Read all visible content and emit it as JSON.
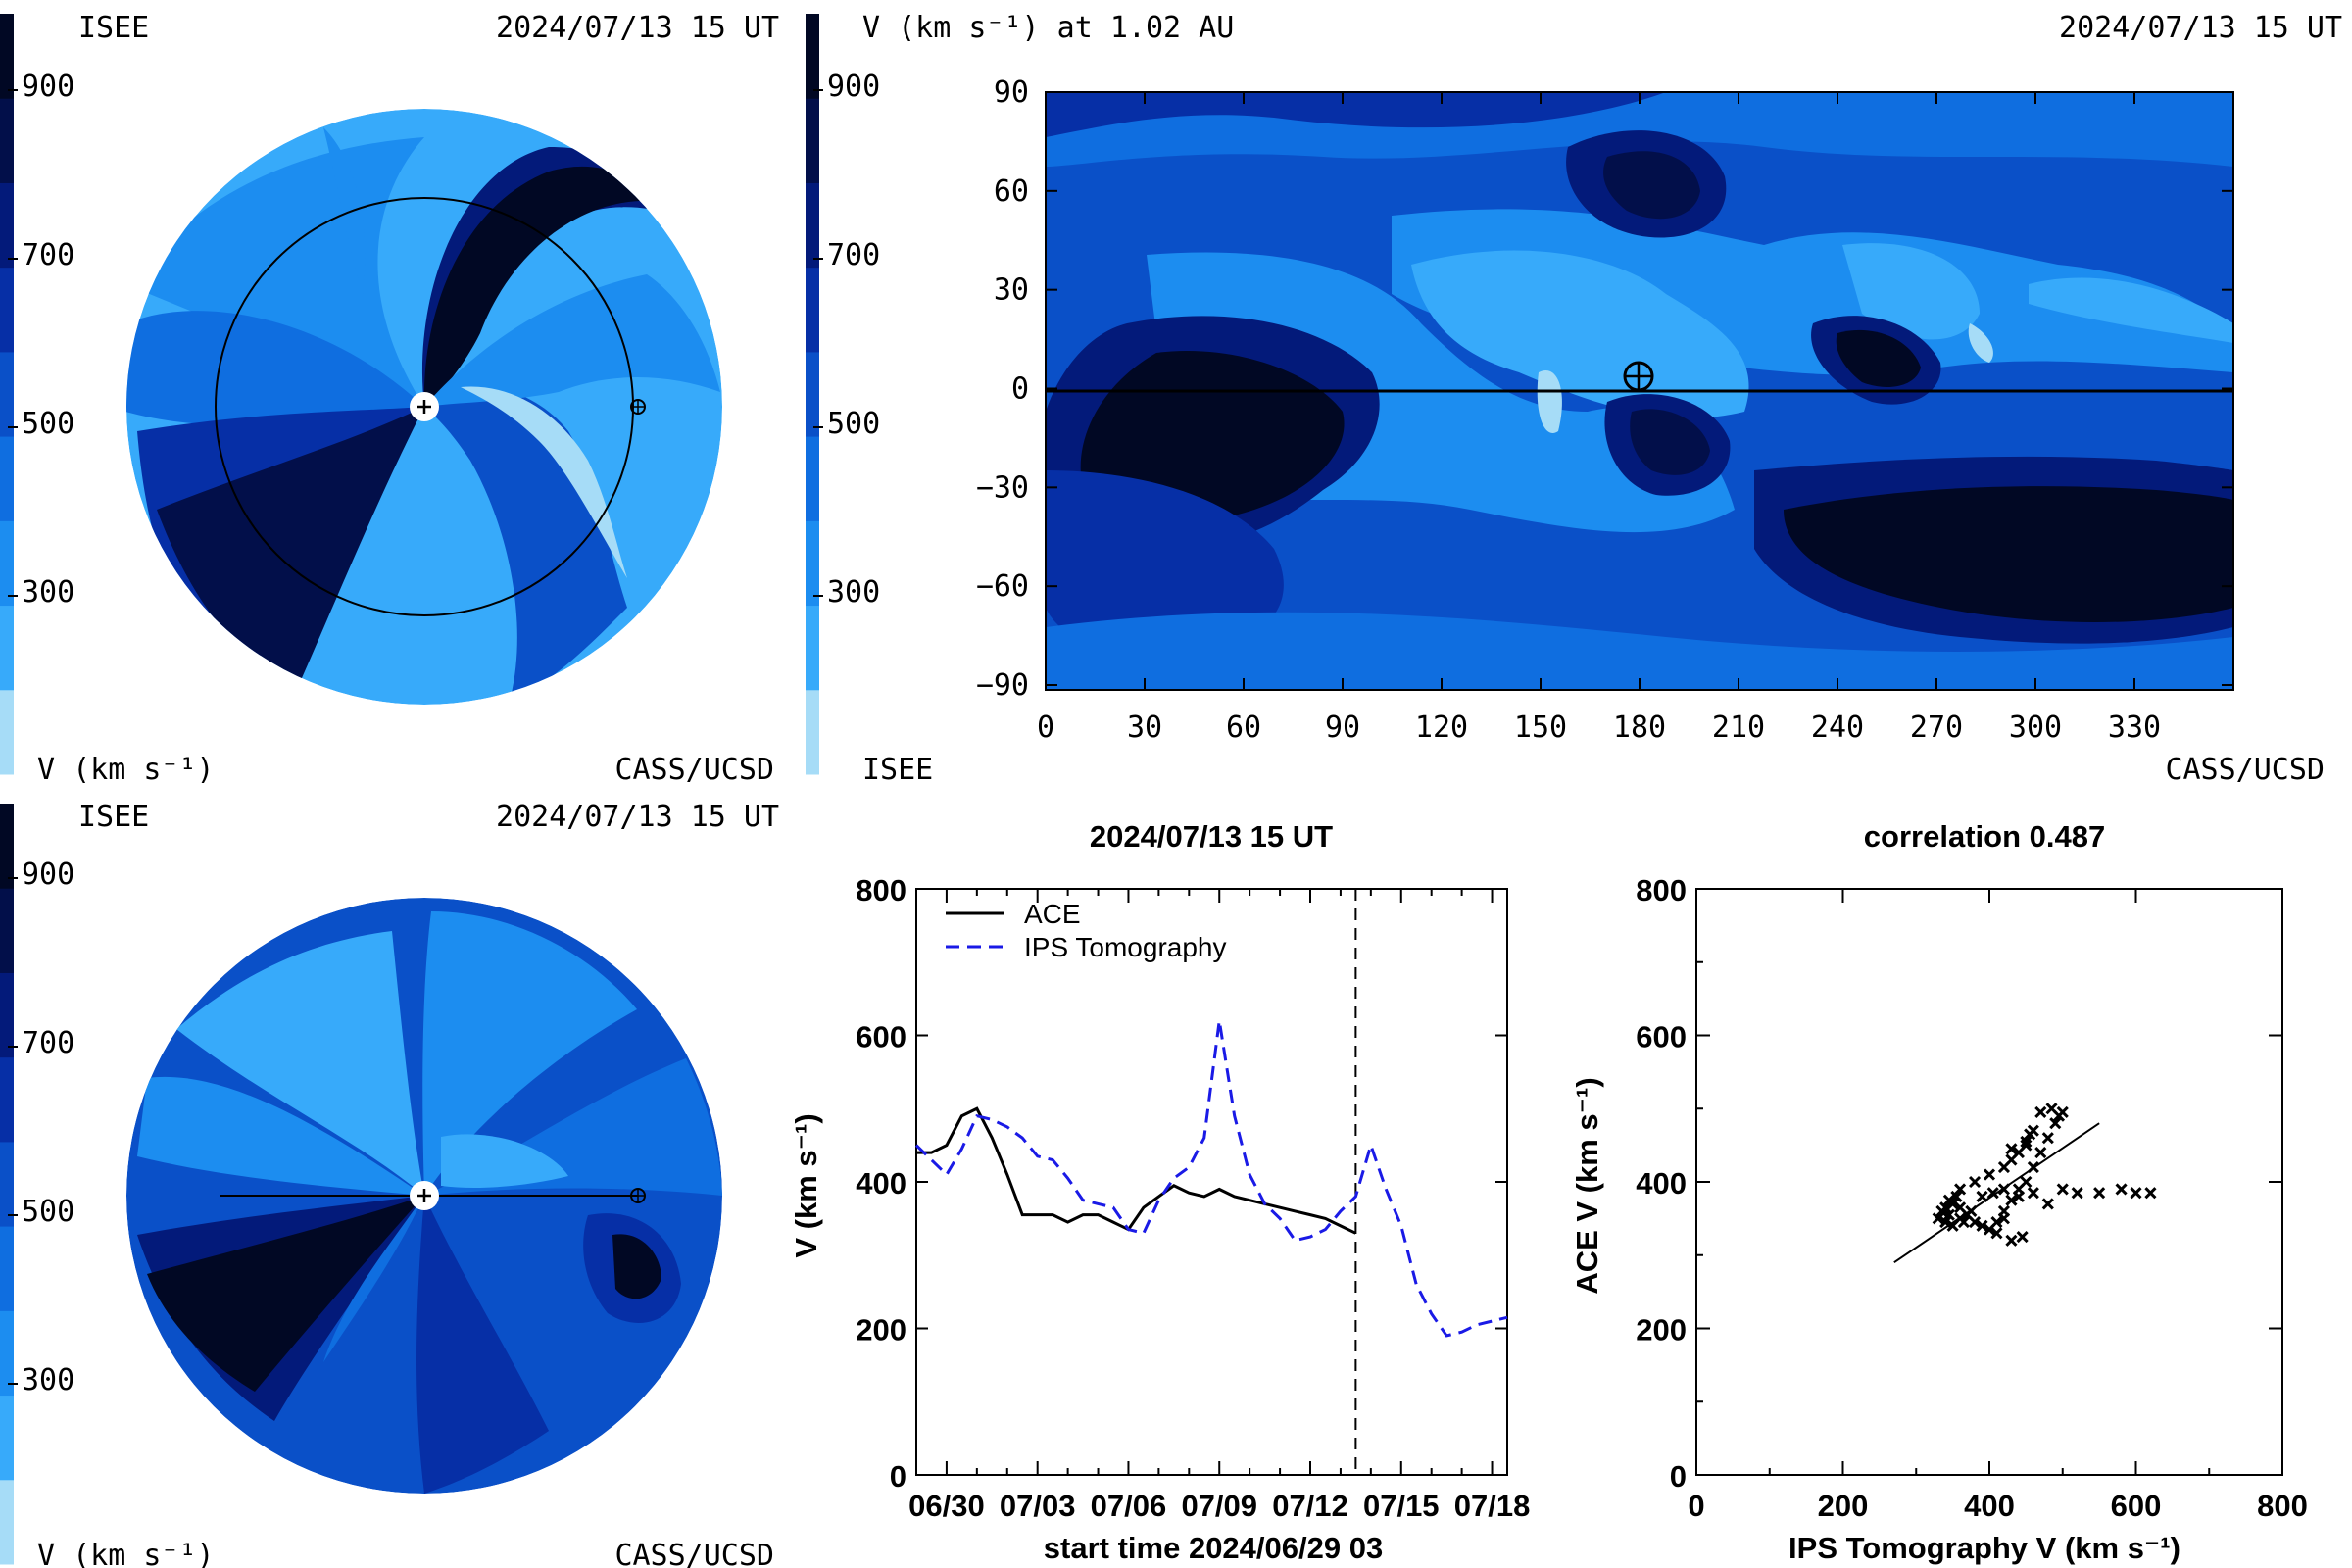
{
  "colors": {
    "scale": [
      "#a6dcf7",
      "#37aafa",
      "#1c8df0",
      "#0f6ee0",
      "#0a50c8",
      "#062fa6",
      "#031a7a",
      "#020f4a",
      "#010824"
    ],
    "ace": "#000000",
    "ips": "#1a1ae6"
  },
  "panel_tl": {
    "org": "ISEE",
    "timestamp": "2024/07/13 15 UT",
    "unit": "V (km s⁻¹)",
    "credit": "CASS/UCSD",
    "scale_ticks": [
      "900",
      "700",
      "500",
      "300"
    ]
  },
  "panel_tr": {
    "title": "V (km s⁻¹) at 1.02 AU",
    "timestamp": "2024/07/13 15 UT",
    "org": "ISEE",
    "credit": "CASS/UCSD",
    "scale_ticks": [
      "900",
      "700",
      "500",
      "300"
    ],
    "y_ticks": [
      "90",
      "60",
      "30",
      "0",
      "−30",
      "−60",
      "−90"
    ],
    "x_ticks": [
      "0",
      "30",
      "60",
      "90",
      "120",
      "150",
      "180",
      "210",
      "240",
      "270",
      "300",
      "330"
    ]
  },
  "panel_bl": {
    "org": "ISEE",
    "timestamp": "2024/07/13 15 UT",
    "unit": "V (km s⁻¹)",
    "credit": "CASS/UCSD",
    "scale_ticks": [
      "900",
      "700",
      "500",
      "300"
    ]
  },
  "chart_data": [
    {
      "type": "line",
      "title": "2024/07/13 15 UT",
      "xlabel": "start time 2024/06/29 03",
      "ylabel": "V (km s⁻¹)",
      "ylim": [
        0,
        800
      ],
      "x_tick_labels": [
        "06/30",
        "07/03",
        "07/06",
        "07/09",
        "07/12",
        "07/15",
        "07/18"
      ],
      "y_tick_labels": [
        "0",
        "200",
        "400",
        "600",
        "800"
      ],
      "xlim_days": [
        0,
        19.5
      ],
      "now_marker_day": 14.5,
      "legend": [
        "ACE",
        "IPS Tomography"
      ],
      "series": [
        {
          "name": "ACE",
          "x": [
            0,
            0.5,
            1,
            1.5,
            2,
            2.5,
            3,
            3.5,
            4,
            4.5,
            5,
            5.5,
            6,
            6.5,
            7,
            7.5,
            8,
            8.5,
            9,
            9.5,
            10,
            10.5,
            11,
            11.5,
            12,
            12.5,
            13,
            13.5,
            14,
            14.5
          ],
          "y": [
            440,
            440,
            450,
            490,
            500,
            460,
            410,
            355,
            355,
            355,
            345,
            355,
            355,
            345,
            335,
            365,
            380,
            395,
            385,
            380,
            390,
            380,
            375,
            370,
            365,
            360,
            355,
            350,
            340,
            330
          ]
        },
        {
          "name": "IPS Tomography",
          "x": [
            0,
            0.5,
            1,
            1.5,
            2,
            2.5,
            3,
            3.5,
            4,
            4.5,
            5,
            5.5,
            6,
            6.5,
            7,
            7.5,
            8,
            8.5,
            9,
            9.5,
            10,
            10.5,
            11,
            11.5,
            12,
            12.5,
            13,
            13.5,
            14,
            14.5,
            15,
            15.5,
            16,
            16.5,
            17,
            17.5,
            18,
            18.5,
            19,
            19.5
          ],
          "y": [
            450,
            430,
            410,
            445,
            490,
            485,
            475,
            460,
            435,
            430,
            405,
            375,
            370,
            365,
            335,
            330,
            375,
            405,
            420,
            460,
            620,
            490,
            410,
            370,
            350,
            320,
            325,
            335,
            360,
            380,
            450,
            390,
            340,
            260,
            220,
            190,
            195,
            205,
            210,
            215
          ]
        }
      ]
    },
    {
      "type": "scatter",
      "title": "correlation 0.487",
      "xlabel": "IPS Tomography V (km s⁻¹)",
      "ylabel": "ACE V (km s⁻¹)",
      "xlim": [
        0,
        800
      ],
      "ylim": [
        0,
        800
      ],
      "x_tick_labels": [
        "0",
        "200",
        "400",
        "600",
        "800"
      ],
      "y_tick_labels": [
        "0",
        "200",
        "400",
        "600",
        "800"
      ],
      "points": [
        [
          330,
          350
        ],
        [
          335,
          360
        ],
        [
          340,
          345
        ],
        [
          345,
          355
        ],
        [
          350,
          370
        ],
        [
          355,
          380
        ],
        [
          360,
          365
        ],
        [
          370,
          355
        ],
        [
          380,
          345
        ],
        [
          390,
          340
        ],
        [
          400,
          335
        ],
        [
          410,
          345
        ],
        [
          420,
          360
        ],
        [
          430,
          375
        ],
        [
          440,
          390
        ],
        [
          450,
          400
        ],
        [
          460,
          420
        ],
        [
          470,
          440
        ],
        [
          480,
          460
        ],
        [
          490,
          480
        ],
        [
          495,
          490
        ],
        [
          500,
          495
        ],
        [
          485,
          500
        ],
        [
          470,
          495
        ],
        [
          460,
          470
        ],
        [
          450,
          450
        ],
        [
          430,
          430
        ],
        [
          420,
          420
        ],
        [
          400,
          410
        ],
        [
          380,
          400
        ],
        [
          360,
          390
        ],
        [
          345,
          375
        ],
        [
          340,
          365
        ],
        [
          360,
          350
        ],
        [
          375,
          360
        ],
        [
          390,
          380
        ],
        [
          405,
          385
        ],
        [
          420,
          390
        ],
        [
          440,
          380
        ],
        [
          460,
          385
        ],
        [
          480,
          370
        ],
        [
          500,
          390
        ],
        [
          520,
          385
        ],
        [
          550,
          385
        ],
        [
          580,
          390
        ],
        [
          600,
          385
        ],
        [
          620,
          385
        ],
        [
          440,
          440
        ],
        [
          430,
          445
        ],
        [
          450,
          455
        ],
        [
          455,
          465
        ],
        [
          420,
          350
        ],
        [
          410,
          330
        ],
        [
          430,
          320
        ],
        [
          445,
          325
        ],
        [
          350,
          340
        ],
        [
          365,
          345
        ]
      ],
      "fit_line": [
        [
          270,
          290
        ],
        [
          550,
          480
        ]
      ]
    }
  ]
}
